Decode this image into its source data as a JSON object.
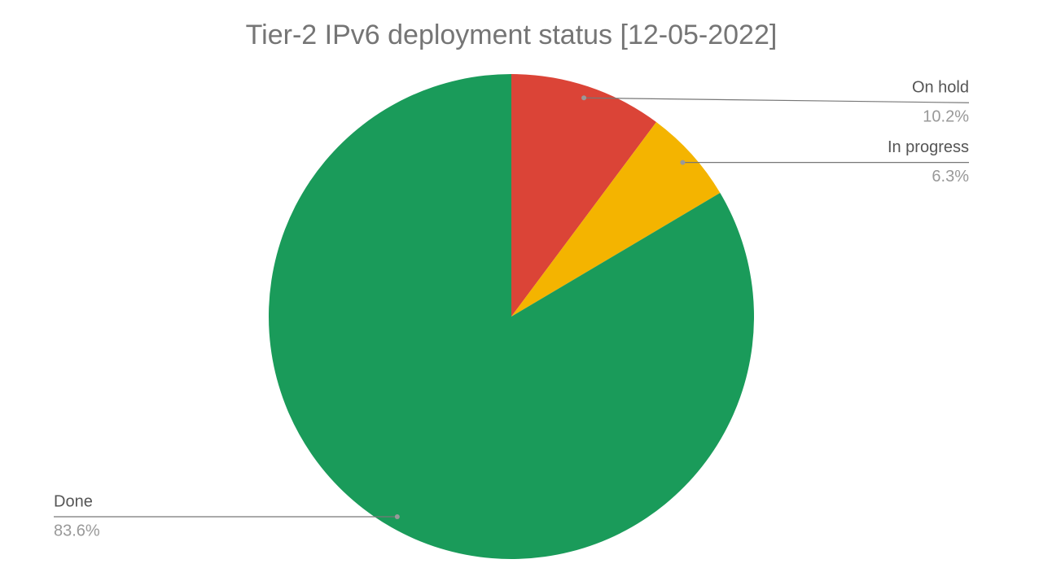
{
  "chart_data": {
    "type": "pie",
    "title": "Tier-2 IPv6 deployment status [12-05-2022]",
    "categories": [
      "On hold",
      "In progress",
      "Done"
    ],
    "values": [
      10.2,
      6.3,
      83.6
    ],
    "value_labels": [
      "10.2%",
      "6.3%",
      "83.6%"
    ],
    "colors": [
      "#db4437",
      "#f4b400",
      "#1a9b5a"
    ]
  }
}
